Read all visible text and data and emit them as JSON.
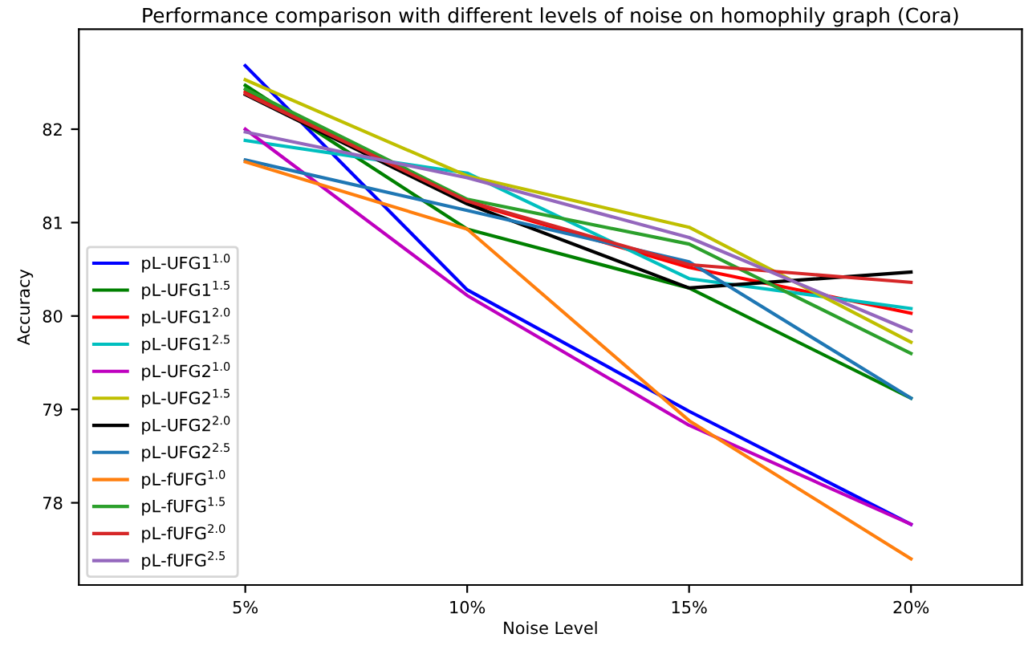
{
  "chart_data": {
    "type": "line",
    "title": "Performance comparison with different levels of noise on homophily graph (Cora)",
    "xlabel": "Noise Level",
    "ylabel": "Accuracy",
    "categories": [
      "5%",
      "10%",
      "15%",
      "20%"
    ],
    "series": [
      {
        "name": "pL-UFG1$^{1.0}$",
        "color": "#0000ff",
        "values": [
          82.68,
          80.28,
          78.98,
          77.77
        ]
      },
      {
        "name": "pL-UFG1$^{1.5}$",
        "color": "#008000",
        "values": [
          82.47,
          80.93,
          80.3,
          79.12
        ]
      },
      {
        "name": "pL-UFG1$^{2.0}$",
        "color": "#ff0000",
        "values": [
          82.4,
          81.22,
          80.52,
          80.03
        ]
      },
      {
        "name": "pL-UFG1$^{2.5}$",
        "color": "#00bfbf",
        "values": [
          81.88,
          81.53,
          80.4,
          80.08
        ]
      },
      {
        "name": "pL-UFG2$^{1.0}$",
        "color": "#bf00bf",
        "values": [
          82.0,
          80.22,
          78.83,
          77.77
        ]
      },
      {
        "name": "pL-UFG2$^{1.5}$",
        "color": "#bfbf00",
        "values": [
          82.53,
          81.5,
          80.95,
          79.72
        ]
      },
      {
        "name": "pL-UFG2$^{2.0}$",
        "color": "#000000",
        "values": [
          82.37,
          81.2,
          80.3,
          80.47
        ]
      },
      {
        "name": "pL-UFG2$^{2.5}$",
        "color": "#1f77b4",
        "values": [
          81.67,
          81.13,
          80.58,
          79.12
        ]
      },
      {
        "name": "pL-fUFG$^{1.0}$",
        "color": "#ff7f0e",
        "values": [
          81.65,
          80.93,
          78.88,
          77.4
        ]
      },
      {
        "name": "pL-fUFG$^{1.5}$",
        "color": "#2ca02c",
        "values": [
          82.43,
          81.25,
          80.77,
          79.6
        ]
      },
      {
        "name": "pL-fUFG$^{2.0}$",
        "color": "#d62728",
        "values": [
          82.38,
          81.23,
          80.55,
          80.36
        ]
      },
      {
        "name": "pL-fUFG$^{2.5}$",
        "color": "#9467bd",
        "values": [
          81.97,
          81.48,
          80.84,
          79.84
        ]
      }
    ],
    "ylim": [
      77.12,
      83.07
    ],
    "yticks": [
      78,
      79,
      80,
      81,
      82
    ],
    "legend": "lower left"
  }
}
